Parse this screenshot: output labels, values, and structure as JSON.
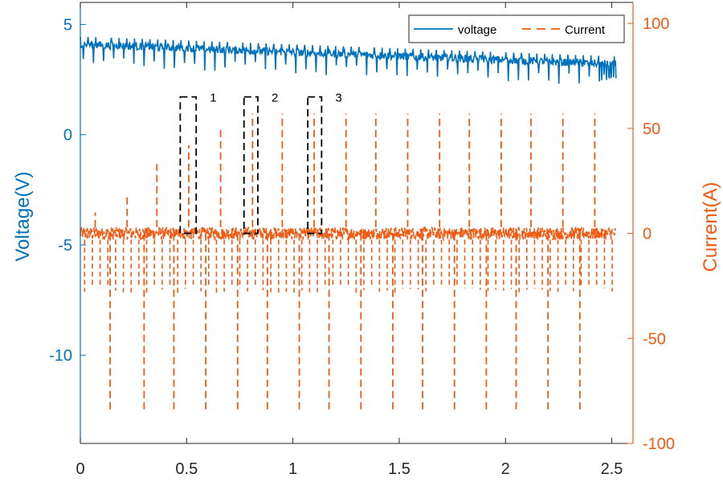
{
  "chart_data": {
    "type": "line",
    "xlabel": "",
    "ylabel_left": "Voltage(V)",
    "ylabel_right": "Current(A)",
    "xlim": [
      0,
      2.6
    ],
    "ylim_left": [
      -14,
      6
    ],
    "ylim_right": [
      -100,
      110
    ],
    "x_ticks": [
      0,
      0.5,
      1,
      1.5,
      2,
      2.5
    ],
    "x_tick_labels": [
      "0",
      "0.5",
      "1",
      "1.5",
      "2",
      "2.5"
    ],
    "y_left_ticks": [
      5,
      0,
      -5,
      -10
    ],
    "y_left_tick_labels": [
      "5",
      "0",
      "-5",
      "-10"
    ],
    "y_right_ticks": [
      100,
      50,
      0,
      -50,
      -100
    ],
    "y_right_tick_labels": [
      "100",
      "50",
      "0",
      "-50",
      "-100"
    ],
    "colors": {
      "voltage": "#0072BD",
      "current": "#F05A12",
      "axis_left": "#0072BD",
      "axis_right": "#F05A12",
      "box": "#000000"
    },
    "legend": {
      "position": "top-right",
      "entries": [
        {
          "label": "voltage",
          "style": "solid",
          "color": "#0072BD"
        },
        {
          "label": "Current",
          "style": "dashed",
          "color": "#F05A12"
        }
      ]
    },
    "series": [
      {
        "name": "voltage",
        "axis": "left",
        "style": "solid",
        "start": [
          0,
          4.1
        ],
        "end": [
          2.52,
          3.2
        ]
      },
      {
        "name": "Current",
        "axis": "right",
        "style": "dashed",
        "baseline_band": [
          -3,
          3
        ],
        "secondary_dip": -27,
        "positive_peaks": [
          {
            "x": 0.07,
            "y": 10
          },
          {
            "x": 0.22,
            "y": 18
          },
          {
            "x": 0.36,
            "y": 33
          },
          {
            "x": 0.51,
            "y": 42
          },
          {
            "x": 0.66,
            "y": 50
          },
          {
            "x": 0.81,
            "y": 57
          },
          {
            "x": 0.95,
            "y": 57
          },
          {
            "x": 1.1,
            "y": 57
          },
          {
            "x": 1.25,
            "y": 57
          },
          {
            "x": 1.39,
            "y": 57
          },
          {
            "x": 1.54,
            "y": 57
          },
          {
            "x": 1.69,
            "y": 57
          },
          {
            "x": 1.83,
            "y": 57
          },
          {
            "x": 1.98,
            "y": 57
          },
          {
            "x": 2.12,
            "y": 57
          },
          {
            "x": 2.27,
            "y": 57
          },
          {
            "x": 2.42,
            "y": 57
          }
        ],
        "negative_dips": [
          {
            "x": 0.14,
            "y": -85
          },
          {
            "x": 0.3,
            "y": -85
          },
          {
            "x": 0.44,
            "y": -85
          },
          {
            "x": 0.59,
            "y": -85
          },
          {
            "x": 0.74,
            "y": -85
          },
          {
            "x": 0.88,
            "y": -85
          },
          {
            "x": 1.03,
            "y": -85
          },
          {
            "x": 1.17,
            "y": -85
          },
          {
            "x": 1.32,
            "y": -85
          },
          {
            "x": 1.47,
            "y": -85
          },
          {
            "x": 1.61,
            "y": -85
          },
          {
            "x": 1.76,
            "y": -85
          },
          {
            "x": 1.91,
            "y": -85
          },
          {
            "x": 2.05,
            "y": -85
          },
          {
            "x": 2.2,
            "y": -85
          },
          {
            "x": 2.35,
            "y": -85
          }
        ]
      }
    ],
    "annotations": [
      {
        "label": "1",
        "x": [
          0.47,
          0.545
        ],
        "y_right": [
          0,
          65
        ]
      },
      {
        "label": "2",
        "x": [
          0.77,
          0.835
        ],
        "y_right": [
          0,
          65
        ]
      },
      {
        "label": "3",
        "x": [
          1.07,
          1.135
        ],
        "y_right": [
          0,
          65
        ]
      }
    ]
  }
}
